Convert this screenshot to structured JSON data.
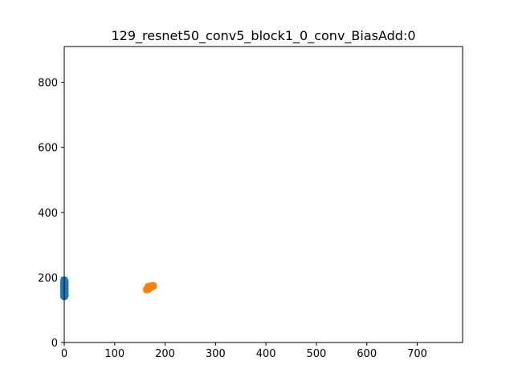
{
  "chart_data": {
    "type": "scatter",
    "title": "129_resnet50_conv5_block1_0_conv_BiasAdd:0",
    "xlabel": "",
    "ylabel": "",
    "xlim": [
      0,
      790
    ],
    "ylim": [
      0,
      910
    ],
    "xticks": [
      0,
      100,
      200,
      300,
      400,
      500,
      600,
      700
    ],
    "yticks": [
      0,
      200,
      400,
      600,
      800
    ],
    "grid": false,
    "series": [
      {
        "color": "#1f77b4",
        "points": [
          [
            0,
            142
          ],
          [
            0,
            147
          ],
          [
            0,
            152
          ],
          [
            0,
            157
          ],
          [
            0,
            162
          ],
          [
            0,
            167
          ],
          [
            0,
            172
          ],
          [
            0,
            177
          ],
          [
            0,
            182
          ],
          [
            0,
            187
          ],
          [
            0,
            191
          ],
          [
            1,
            145
          ],
          [
            1,
            155
          ],
          [
            1,
            165
          ],
          [
            1,
            175
          ],
          [
            1,
            185
          ]
        ]
      },
      {
        "color": "#ff7f0e",
        "points": [
          [
            164,
            163
          ],
          [
            166,
            168
          ],
          [
            168,
            166
          ],
          [
            170,
            170
          ],
          [
            173,
            173
          ],
          [
            176,
            174
          ],
          [
            167,
            171
          ]
        ]
      }
    ]
  }
}
